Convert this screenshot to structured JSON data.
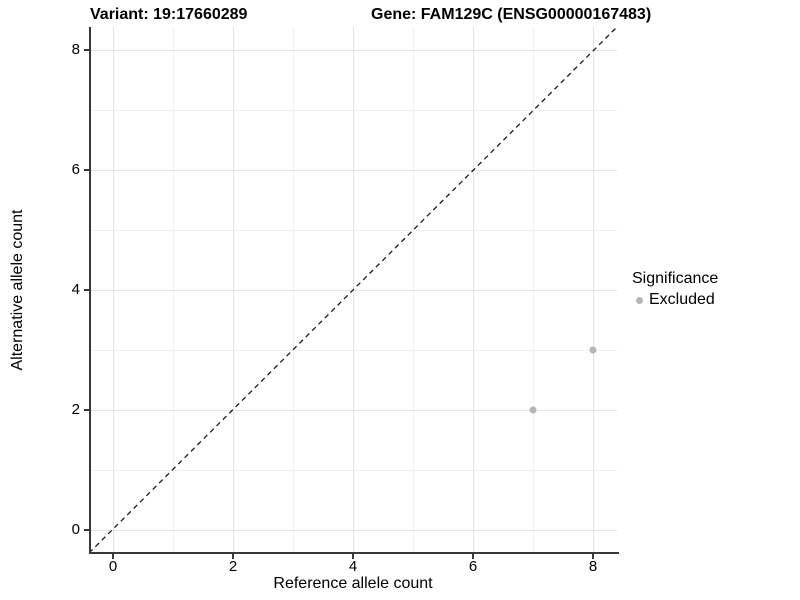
{
  "titles": {
    "variant": "Variant: 19:17660289",
    "gene": "Gene: FAM129C (ENSG00000167483)"
  },
  "axes": {
    "x": {
      "label": "Reference allele count",
      "ticks": [
        "0",
        "2",
        "4",
        "6",
        "8"
      ]
    },
    "y": {
      "label": "Alternative allele count",
      "ticks": [
        "0",
        "2",
        "4",
        "6",
        "8"
      ]
    }
  },
  "legend": {
    "title": "Significance",
    "items": [
      {
        "label": "Excluded",
        "color": "#b5b5b5"
      }
    ]
  },
  "colors": {
    "point_excluded": "#b5b5b5",
    "axis_line": "#383838",
    "grid_major": "#e4e4e4",
    "grid_minor": "#f1f1f1",
    "identity_line": "#1a1a1a",
    "background": "#ffffff"
  },
  "chart_data": {
    "type": "scatter",
    "title": "Variant: 19:17660289 — Gene: FAM129C (ENSG00000167483)",
    "xlabel": "Reference allele count",
    "ylabel": "Alternative allele count",
    "xlim": [
      -0.4,
      8.4
    ],
    "ylim": [
      -0.4,
      8.4
    ],
    "x_ticks": [
      0,
      2,
      4,
      6,
      8
    ],
    "y_ticks": [
      0,
      2,
      4,
      6,
      8
    ],
    "grid": true,
    "legend_position": "right",
    "legend_title": "Significance",
    "series": [
      {
        "name": "Excluded",
        "color": "#b5b5b5",
        "points": [
          {
            "x": 7,
            "y": 2
          },
          {
            "x": 8,
            "y": 3
          }
        ]
      }
    ],
    "reference_line": {
      "kind": "identity y=x",
      "style": "dashed",
      "color": "#1a1a1a"
    }
  }
}
